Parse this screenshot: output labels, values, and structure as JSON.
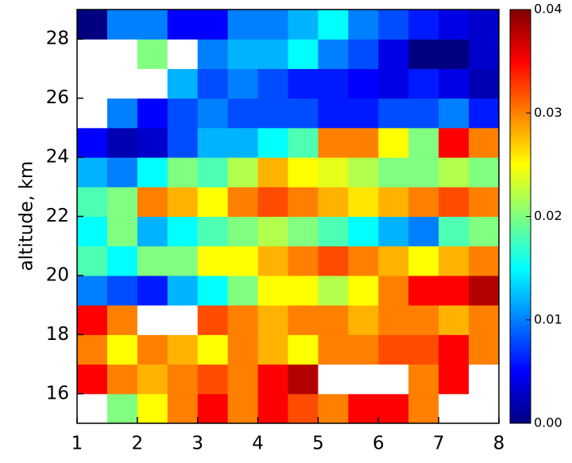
{
  "chart_data": {
    "type": "heatmap",
    "y_label": "altitude, km",
    "x": [
      1.25,
      1.75,
      2.25,
      2.75,
      3.25,
      3.75,
      4.25,
      4.75,
      5.25,
      5.75,
      6.25,
      6.75,
      7.25,
      7.75
    ],
    "y": [
      15.5,
      16.5,
      17.5,
      18.5,
      19.5,
      20.5,
      21.5,
      22.5,
      23.5,
      24.5,
      25.5,
      26.5,
      27.5,
      28.5
    ],
    "values": [
      [
        null,
        0.02,
        0.025,
        0.03,
        0.035,
        0.03,
        0.035,
        0.032,
        0.03,
        0.035,
        0.035,
        0.03,
        null,
        null
      ],
      [
        0.035,
        0.03,
        0.028,
        0.03,
        0.032,
        0.03,
        0.035,
        0.038,
        null,
        null,
        null,
        0.03,
        0.035,
        null
      ],
      [
        0.03,
        0.025,
        0.03,
        0.028,
        0.025,
        0.03,
        0.028,
        0.025,
        0.03,
        0.03,
        0.032,
        0.032,
        0.035,
        0.03
      ],
      [
        0.035,
        0.03,
        null,
        null,
        0.032,
        0.03,
        0.028,
        0.03,
        0.03,
        0.028,
        0.03,
        0.03,
        0.028,
        0.03
      ],
      [
        0.01,
        0.008,
        0.006,
        0.012,
        0.015,
        0.02,
        0.025,
        0.025,
        0.022,
        0.025,
        0.03,
        0.035,
        0.035,
        0.038
      ],
      [
        0.018,
        0.015,
        0.02,
        0.02,
        0.025,
        0.025,
        0.028,
        0.03,
        0.032,
        0.03,
        0.028,
        0.025,
        0.028,
        0.03
      ],
      [
        0.015,
        0.02,
        0.012,
        0.015,
        0.018,
        0.02,
        0.022,
        0.02,
        0.018,
        0.015,
        0.012,
        0.01,
        0.018,
        0.02
      ],
      [
        0.018,
        0.02,
        0.03,
        0.028,
        0.025,
        0.03,
        0.032,
        0.03,
        0.028,
        0.026,
        0.028,
        0.03,
        0.032,
        0.03
      ],
      [
        0.012,
        0.01,
        0.015,
        0.02,
        0.018,
        0.022,
        0.028,
        0.025,
        0.024,
        0.022,
        0.02,
        0.02,
        0.022,
        0.02
      ],
      [
        0.005,
        0.002,
        0.003,
        0.008,
        0.012,
        0.012,
        0.015,
        0.018,
        0.03,
        0.03,
        0.025,
        0.02,
        0.035,
        0.03
      ],
      [
        null,
        0.01,
        0.005,
        0.008,
        0.01,
        0.008,
        0.008,
        0.008,
        0.006,
        0.006,
        0.008,
        0.008,
        0.01,
        0.006
      ],
      [
        null,
        null,
        null,
        0.012,
        0.008,
        0.01,
        0.008,
        0.006,
        0.006,
        0.005,
        0.004,
        0.006,
        0.004,
        0.002
      ],
      [
        null,
        null,
        0.02,
        null,
        0.01,
        0.012,
        0.012,
        0.015,
        0.01,
        0.008,
        0.004,
        0,
        0,
        0.003
      ],
      [
        0,
        0.01,
        0.01,
        0.005,
        0.005,
        0.01,
        0.01,
        0.012,
        0.015,
        0.01,
        0.008,
        0.006,
        0.004,
        0.003
      ]
    ],
    "null_color": "#ffffff",
    "colormap": "jet",
    "xlim": [
      1,
      8
    ],
    "xticks": [
      1,
      2,
      3,
      4,
      5,
      6,
      7,
      8
    ],
    "ylim": [
      15,
      29
    ],
    "yticks": [
      16,
      18,
      20,
      22,
      24,
      26,
      28
    ],
    "clim": [
      0,
      0.04
    ],
    "cticks": [
      {
        "value": 0,
        "label": "0.00"
      },
      {
        "value": 0.01,
        "label": "0.01"
      },
      {
        "value": 0.02,
        "label": "0.02"
      },
      {
        "value": 0.03,
        "label": "0.03"
      },
      {
        "value": 0.04,
        "label": "0.04"
      }
    ]
  }
}
